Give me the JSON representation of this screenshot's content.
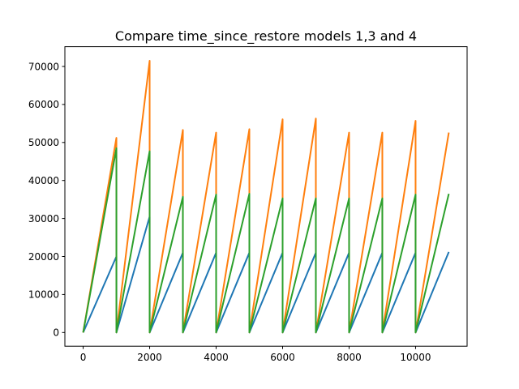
{
  "chart_data": {
    "type": "line",
    "title": "Compare time_since_restore models 1,3 and 4",
    "xlabel": "",
    "ylabel": "",
    "xlim": [
      -550,
      11550
    ],
    "ylim": [
      -3600,
      75200
    ],
    "grid": false,
    "xticks": [
      0,
      2000,
      4000,
      6000,
      8000,
      10000
    ],
    "xtick_labels": [
      "0",
      "2000",
      "4000",
      "6000",
      "8000",
      "10000"
    ],
    "yticks": [
      0,
      10000,
      20000,
      30000,
      40000,
      50000,
      60000,
      70000
    ],
    "ytick_labels": [
      "0",
      "10000",
      "20000",
      "30000",
      "40000",
      "50000",
      "60000",
      "70000"
    ],
    "series": [
      {
        "color": "#1f77b4",
        "x": [
          0,
          1000,
          1000,
          2000,
          2000,
          3000,
          3000,
          4000,
          4000,
          5000,
          5000,
          6000,
          6000,
          7000,
          7000,
          8000,
          8000,
          9000,
          9000,
          10000,
          10000,
          11000
        ],
        "y": [
          0,
          20000,
          0,
          30500,
          0,
          21000,
          0,
          21000,
          0,
          21000,
          0,
          21000,
          0,
          21000,
          0,
          21000,
          0,
          21000,
          0,
          21000,
          0,
          21200
        ]
      },
      {
        "color": "#ff7f0e",
        "x": [
          0,
          1000,
          1000,
          2000,
          2000,
          3000,
          3000,
          4000,
          4000,
          5000,
          5000,
          6000,
          6000,
          7000,
          7000,
          8000,
          8000,
          9000,
          9000,
          10000,
          10000,
          11000
        ],
        "y": [
          0,
          51200,
          0,
          71500,
          0,
          53300,
          0,
          52600,
          0,
          53500,
          0,
          56100,
          0,
          56300,
          0,
          52600,
          0,
          52600,
          0,
          55700,
          0,
          52600
        ]
      },
      {
        "color": "#2ca02c",
        "x": [
          0,
          1000,
          1000,
          2000,
          2000,
          3000,
          3000,
          4000,
          4000,
          5000,
          5000,
          6000,
          6000,
          7000,
          7000,
          8000,
          8000,
          9000,
          9000,
          10000,
          10000,
          11000
        ],
        "y": [
          0,
          48500,
          0,
          47700,
          0,
          35700,
          0,
          36300,
          0,
          36500,
          0,
          35300,
          0,
          35300,
          0,
          35300,
          0,
          35300,
          0,
          36300,
          0,
          36500
        ]
      }
    ]
  }
}
